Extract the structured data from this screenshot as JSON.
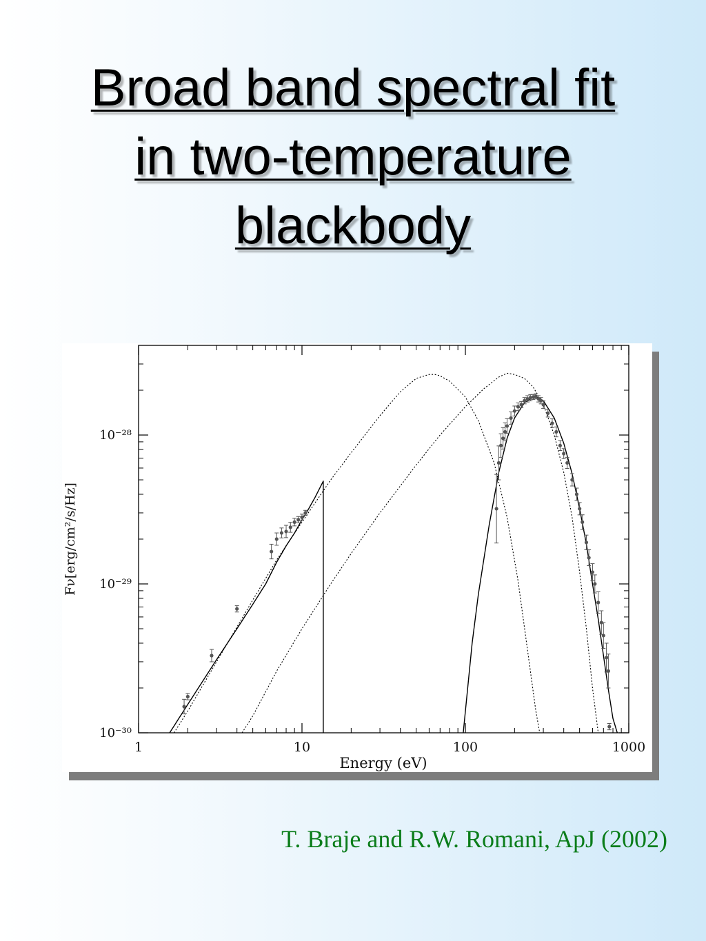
{
  "slide": {
    "title_lines": [
      "Broad band spectral fit",
      "in two-temperature",
      "blackbody"
    ],
    "citation": "T. Braje and R.W. Romani, ApJ (2002)"
  },
  "colors": {
    "citation": "#0b7d1a",
    "data_points": "#555555",
    "model_lines": "#000000"
  },
  "chart_data": {
    "type": "scatter",
    "xlabel": "Energy (eV)",
    "ylabel": "Fν[erg/cm²/s/Hz]",
    "xscale": "log",
    "yscale": "log",
    "xlim": [
      1,
      1000
    ],
    "ylim": [
      1e-30,
      4e-28
    ],
    "x_ticks": [
      {
        "value": 1,
        "label": "1"
      },
      {
        "value": 10,
        "label": "10"
      },
      {
        "value": 100,
        "label": "100"
      },
      {
        "value": 1000,
        "label": "1000"
      }
    ],
    "y_ticks": [
      {
        "value": 1e-30,
        "label": "10⁻³⁰"
      },
      {
        "value": 1e-29,
        "label": "10⁻²⁹"
      },
      {
        "value": 1e-28,
        "label": "10⁻²⁸"
      }
    ],
    "grid": false,
    "series": [
      {
        "style": "solid-line",
        "x": [
          1.55,
          2.0,
          3.0,
          4.0,
          5.0,
          6.0,
          7.0,
          8.0,
          9.0,
          10.0,
          11.0,
          12.0,
          13.5,
          13.5
        ],
        "y": [
          1e-30,
          1.55e-30,
          3.1e-30,
          5e-30,
          7.3e-30,
          1e-29,
          1.4e-29,
          1.8e-29,
          2.2e-29,
          2.7e-29,
          3.2e-29,
          3.8e-29,
          4.9e-29,
          1e-30
        ]
      },
      {
        "style": "dotted-line",
        "x": [
          1.65,
          2,
          3,
          5,
          7,
          10,
          15,
          20,
          30,
          40,
          50,
          60,
          65,
          70,
          80,
          100,
          120,
          150,
          180,
          210,
          240,
          270,
          285
        ],
        "y": [
          1e-30,
          1.4e-30,
          3e-30,
          7.8e-30,
          1.45e-29,
          2.6e-29,
          5e-29,
          7.6e-29,
          1.35e-28,
          1.95e-28,
          2.4e-28,
          2.55e-28,
          2.55e-28,
          2.5e-28,
          2.3e-28,
          1.8e-28,
          1.25e-28,
          6.5e-29,
          2.8e-29,
          1.05e-29,
          3.6e-30,
          1.4e-30,
          1e-30
        ]
      },
      {
        "style": "dotted-line",
        "x": [
          4.3,
          5,
          7,
          10,
          15,
          20,
          30,
          50,
          70,
          100,
          130,
          160,
          180,
          200,
          230,
          260,
          300,
          350,
          400,
          450,
          500,
          550,
          600,
          650
        ],
        "y": [
          1e-30,
          1.3e-30,
          2.6e-30,
          5e-30,
          1e-29,
          1.6e-29,
          3e-29,
          6.3e-29,
          1e-28,
          1.55e-28,
          2.05e-28,
          2.45e-28,
          2.6e-28,
          2.55e-28,
          2.4e-28,
          2.1e-28,
          1.6e-28,
          1e-28,
          5.6e-29,
          2.8e-29,
          1.2e-29,
          5e-30,
          2e-30,
          1e-30
        ]
      },
      {
        "style": "solid-line",
        "x": [
          97,
          110,
          120,
          140,
          160,
          180,
          200,
          230,
          260,
          280,
          300,
          350,
          400,
          450,
          500,
          550,
          600,
          650,
          700,
          750,
          800,
          850
        ],
        "y": [
          1e-30,
          4e-30,
          8.5e-30,
          2.5e-29,
          5.6e-29,
          9.5e-29,
          1.3e-28,
          1.65e-28,
          1.8e-28,
          1.78e-28,
          1.7e-28,
          1.3e-28,
          8.8e-29,
          5.5e-29,
          3.2e-29,
          1.85e-29,
          1e-29,
          5.8e-30,
          3.3e-30,
          1.95e-30,
          1.25e-30,
          1e-30
        ]
      },
      {
        "style": "points",
        "x": [
          1.9,
          2.0,
          2.8,
          4.0,
          6.5,
          7.0,
          7.5,
          8.0,
          8.5,
          9.0,
          9.5,
          10.0,
          10.5,
          155,
          160,
          165,
          170,
          175,
          180,
          190,
          200,
          210,
          220,
          230,
          240,
          250,
          260,
          270,
          280,
          290,
          300,
          320,
          340,
          360,
          380,
          400,
          420,
          450,
          480,
          500,
          520,
          550,
          570,
          600,
          620,
          650,
          680,
          700,
          730,
          750,
          760
        ],
        "y": [
          1.5e-30,
          1.75e-30,
          3.3e-30,
          6.8e-30,
          1.65e-29,
          2e-29,
          2.2e-29,
          2.25e-29,
          2.4e-29,
          2.6e-29,
          2.7e-29,
          2.8e-29,
          3e-29,
          3.2e-29,
          6.5e-29,
          8.5e-29,
          9.5e-29,
          1.05e-28,
          1.15e-28,
          1.3e-28,
          1.45e-28,
          1.55e-28,
          1.6e-28,
          1.7e-28,
          1.75e-28,
          1.78e-28,
          1.8e-28,
          1.82e-28,
          1.75e-28,
          1.7e-28,
          1.6e-28,
          1.4e-28,
          1.2e-28,
          1.05e-28,
          8.5e-29,
          7.5e-29,
          6.5e-29,
          5e-29,
          4e-29,
          3.2e-29,
          2.6e-29,
          1.9e-29,
          1.5e-29,
          1.2e-29,
          1e-29,
          7.5e-30,
          5.5e-30,
          4.5e-30,
          3.2e-30,
          2.6e-30,
          1.1e-30
        ],
        "err_factor": [
          1.12,
          1.05,
          1.1,
          1.05,
          1.12,
          1.1,
          1.08,
          1.1,
          1.08,
          1.06,
          1.05,
          1.05,
          1.04,
          1.7,
          1.3,
          1.2,
          1.18,
          1.15,
          1.12,
          1.1,
          1.08,
          1.06,
          1.05,
          1.05,
          1.05,
          1.05,
          1.04,
          1.04,
          1.05,
          1.05,
          1.06,
          1.06,
          1.07,
          1.08,
          1.08,
          1.08,
          1.09,
          1.1,
          1.1,
          1.1,
          1.12,
          1.12,
          1.13,
          1.14,
          1.15,
          1.18,
          1.2,
          1.22,
          1.25,
          1.3,
          1.05
        ]
      }
    ]
  }
}
